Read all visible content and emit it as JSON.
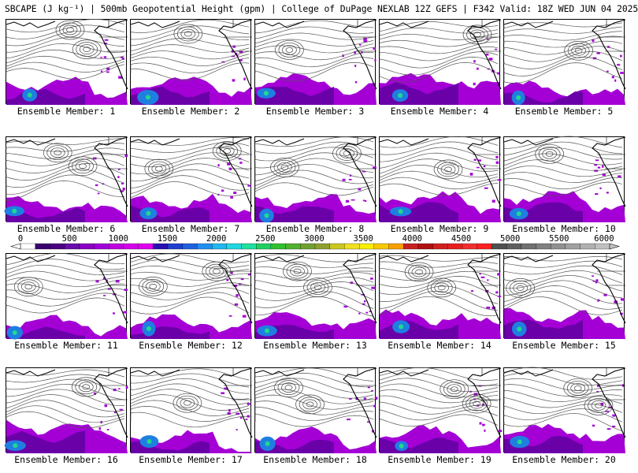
{
  "title": "SBCAPE (J kg⁻¹) | 500mb Geopotential Height (gpm) | College of DuPage NEXLAB 12Z GEFS | F342 Valid: 18Z WED JUN 04 2025",
  "caption_prefix": "Ensemble Member: ",
  "members": [
    {
      "label": "Ensemble Member: 1"
    },
    {
      "label": "Ensemble Member: 2"
    },
    {
      "label": "Ensemble Member: 3"
    },
    {
      "label": "Ensemble Member: 4"
    },
    {
      "label": "Ensemble Member: 5"
    },
    {
      "label": "Ensemble Member: 6"
    },
    {
      "label": "Ensemble Member: 7"
    },
    {
      "label": "Ensemble Member: 8"
    },
    {
      "label": "Ensemble Member: 9"
    },
    {
      "label": "Ensemble Member: 10"
    },
    {
      "label": "Ensemble Member: 11"
    },
    {
      "label": "Ensemble Member: 12"
    },
    {
      "label": "Ensemble Member: 13"
    },
    {
      "label": "Ensemble Member: 14"
    },
    {
      "label": "Ensemble Member: 15"
    },
    {
      "label": "Ensemble Member: 16"
    },
    {
      "label": "Ensemble Member: 17"
    },
    {
      "label": "Ensemble Member: 18"
    },
    {
      "label": "Ensemble Member: 19"
    },
    {
      "label": "Ensemble Member: 20"
    }
  ],
  "colorbar": {
    "labels": [
      "0",
      "500",
      "1000",
      "1500",
      "2000",
      "2500",
      "3000",
      "3500",
      "4000",
      "4500",
      "5000",
      "5500",
      "6000"
    ],
    "colors": [
      "#ffffff",
      "#3a006e",
      "#4b0082",
      "#6a0dad",
      "#8a00c2",
      "#a000d8",
      "#c000e0",
      "#d400e8",
      "#e000f0",
      "#2a0fb0",
      "#1f3fd0",
      "#2060e0",
      "#2090f0",
      "#20b8f0",
      "#20d8e0",
      "#20e0a0",
      "#20d060",
      "#30c030",
      "#50b030",
      "#70a030",
      "#90a030",
      "#c8c820",
      "#f0e020",
      "#f8f000",
      "#f8c800",
      "#f8a000",
      "#c82020",
      "#b01010",
      "#d02020",
      "#e82020",
      "#f03030",
      "#ff2020",
      "#505050",
      "#606060",
      "#707070",
      "#808080",
      "#909090",
      "#a0a0a0",
      "#b0b0b0",
      "#c0c0c0"
    ]
  }
}
